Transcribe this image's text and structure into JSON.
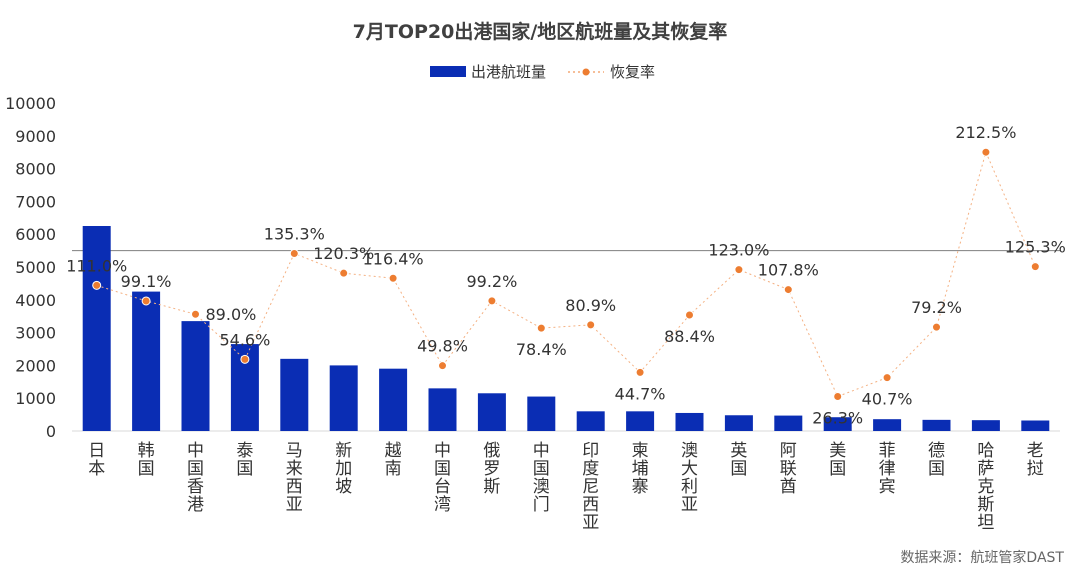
{
  "chart_data": {
    "type": "bar",
    "title": "7月TOP20出港国家/地区航班量及其恢复率",
    "categories": [
      "日本",
      "韩国",
      "中国香港",
      "泰国",
      "马来西亚",
      "新加坡",
      "越南",
      "中国台湾",
      "俄罗斯",
      "中国澳门",
      "印度尼西亚",
      "柬埔寨",
      "澳大利亚",
      "英国",
      "阿联酋",
      "美国",
      "菲律宾",
      "德国",
      "哈萨克斯坦",
      "老挝"
    ],
    "series": [
      {
        "name": "出港航班量",
        "kind": "bar",
        "color": "#0a2db4",
        "values": [
          6250,
          4250,
          3350,
          2650,
          2200,
          2000,
          1900,
          1300,
          1150,
          1050,
          600,
          600,
          550,
          480,
          470,
          420,
          360,
          340,
          330,
          320
        ]
      },
      {
        "name": "恢复率",
        "kind": "dotted-line",
        "color": "#ed7d31",
        "values": [
          111.0,
          99.1,
          89.0,
          54.6,
          135.3,
          120.3,
          116.4,
          49.8,
          99.2,
          78.4,
          80.9,
          44.7,
          88.4,
          123.0,
          107.8,
          26.3,
          40.7,
          79.2,
          212.5,
          125.3
        ],
        "labels": [
          "111.0%",
          "99.1%",
          "89.0%",
          "54.6%",
          "135.3%",
          "120.3%",
          "116.4%",
          "49.8%",
          "99.2%",
          "78.4%",
          "80.9%",
          "44.7%",
          "88.4%",
          "123.0%",
          "107.8%",
          "26.3%",
          "40.7%",
          "79.2%",
          "212.5%",
          "125.3%"
        ]
      }
    ],
    "ylim": [
      0,
      10000
    ],
    "yticks": [
      "0",
      "1000",
      "2000",
      "3000",
      "4000",
      "5000",
      "6000",
      "7000",
      "8000",
      "9000",
      "10000"
    ],
    "y2lim": [
      0,
      250
    ],
    "reference_line_value": 5500,
    "legend_position": "top-center",
    "grid": false
  },
  "source_text": "数据来源：航班管家DAST"
}
